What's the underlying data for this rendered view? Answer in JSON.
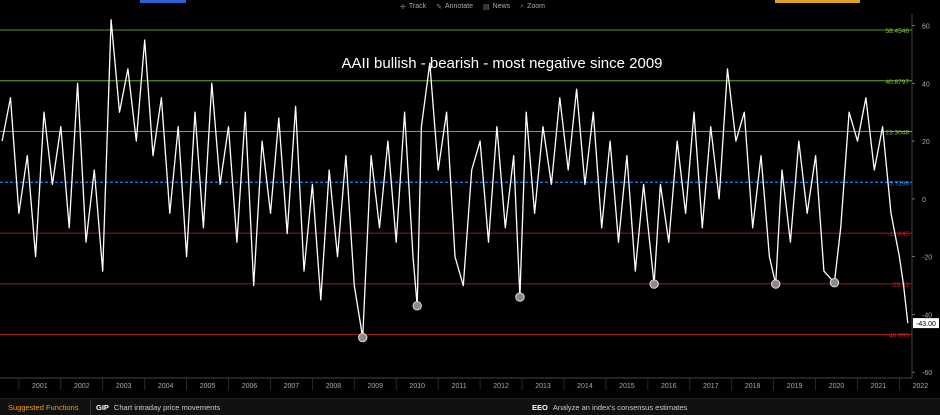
{
  "toolbar": {
    "items": [
      {
        "label": "Track",
        "icon": "crosshair-icon"
      },
      {
        "label": "Annotate",
        "icon": "pencil-icon"
      },
      {
        "label": "News",
        "icon": "news-icon"
      },
      {
        "label": "Zoom",
        "icon": "zoom-icon"
      }
    ]
  },
  "bottom_bar": {
    "label": "Suggested Functions",
    "functions": [
      {
        "code": "GIP",
        "description": "Chart intraday price movements"
      },
      {
        "code": "EEO",
        "description": "Analyze an index's consensus estimates"
      }
    ]
  },
  "colors": {
    "background": "#000000",
    "series": "#ffffff",
    "mean_line": "#1e90ff",
    "upper_bands": "#7cc242",
    "lower_bands": "#cc2222",
    "last_value_box": "#ffffff"
  },
  "chart_data": {
    "type": "line",
    "title": "AAII bullish - bearish - most negative since 2009",
    "x_tick_labels": [
      "2001",
      "2002",
      "2003",
      "2004",
      "2005",
      "2006",
      "2007",
      "2008",
      "2009",
      "2010",
      "2011",
      "2012",
      "2013",
      "2014",
      "2015",
      "2016",
      "2017",
      "2018",
      "2019",
      "2020",
      "2021",
      "2022"
    ],
    "xlim": [
      2000.55,
      2022.3
    ],
    "ylim": [
      -62,
      64
    ],
    "y_ticks": [
      -60,
      -40,
      -20,
      0,
      20,
      40,
      60
    ],
    "y_tick_labels": [
      "-60",
      "-40",
      "-20",
      "0",
      "20",
      "40",
      "60"
    ],
    "reference_lines": [
      {
        "value": 58.4546,
        "label": "58.4546",
        "color": "#7cc242"
      },
      {
        "value": 40.8797,
        "label": "40.8797",
        "color": "#7cc242"
      },
      {
        "value": 23.3048,
        "label": "23.3048",
        "color": "#7cc242"
      },
      {
        "value": 5.7299,
        "label": "5.7299",
        "color": "#1e90ff",
        "style": "dashed"
      },
      {
        "value": -11.845,
        "label": "-11.845",
        "color": "#cc2222"
      },
      {
        "value": -29.42,
        "label": "-29.42",
        "color": "#cc2222"
      },
      {
        "value": -46.995,
        "label": "-46.995",
        "color": "#cc2222"
      }
    ],
    "last_value": {
      "value": -43.0,
      "label": "-43.00"
    },
    "highlighted_lows": [
      {
        "x": 2009.2,
        "y": -48
      },
      {
        "x": 2010.5,
        "y": -37
      },
      {
        "x": 2012.95,
        "y": -34
      },
      {
        "x": 2016.15,
        "y": -29.5
      },
      {
        "x": 2019.05,
        "y": -29.5
      },
      {
        "x": 2020.45,
        "y": -29
      }
    ],
    "series": [
      {
        "values": [
          [
            2000.6,
            20
          ],
          [
            2000.8,
            35
          ],
          [
            2001.0,
            -5
          ],
          [
            2001.2,
            15
          ],
          [
            2001.4,
            -20
          ],
          [
            2001.6,
            30
          ],
          [
            2001.8,
            5
          ],
          [
            2002.0,
            25
          ],
          [
            2002.2,
            -10
          ],
          [
            2002.4,
            40
          ],
          [
            2002.6,
            -15
          ],
          [
            2002.8,
            10
          ],
          [
            2003.0,
            -25
          ],
          [
            2003.2,
            62
          ],
          [
            2003.4,
            30
          ],
          [
            2003.6,
            45
          ],
          [
            2003.8,
            20
          ],
          [
            2004.0,
            55
          ],
          [
            2004.2,
            15
          ],
          [
            2004.4,
            35
          ],
          [
            2004.6,
            -5
          ],
          [
            2004.8,
            25
          ],
          [
            2005.0,
            -20
          ],
          [
            2005.2,
            30
          ],
          [
            2005.4,
            -10
          ],
          [
            2005.6,
            40
          ],
          [
            2005.8,
            5
          ],
          [
            2006.0,
            25
          ],
          [
            2006.2,
            -15
          ],
          [
            2006.4,
            30
          ],
          [
            2006.6,
            -30
          ],
          [
            2006.8,
            20
          ],
          [
            2007.0,
            -5
          ],
          [
            2007.2,
            28
          ],
          [
            2007.4,
            -12
          ],
          [
            2007.6,
            32
          ],
          [
            2007.8,
            -25
          ],
          [
            2008.0,
            5
          ],
          [
            2008.2,
            -35
          ],
          [
            2008.4,
            10
          ],
          [
            2008.6,
            -20
          ],
          [
            2008.8,
            15
          ],
          [
            2009.0,
            -30
          ],
          [
            2009.2,
            -48
          ],
          [
            2009.4,
            15
          ],
          [
            2009.6,
            -10
          ],
          [
            2009.8,
            20
          ],
          [
            2010.0,
            -15
          ],
          [
            2010.2,
            30
          ],
          [
            2010.4,
            -20
          ],
          [
            2010.5,
            -37
          ],
          [
            2010.6,
            25
          ],
          [
            2010.8,
            47
          ],
          [
            2011.0,
            10
          ],
          [
            2011.2,
            30
          ],
          [
            2011.4,
            -20
          ],
          [
            2011.6,
            -30
          ],
          [
            2011.8,
            10
          ],
          [
            2012.0,
            20
          ],
          [
            2012.2,
            -15
          ],
          [
            2012.4,
            25
          ],
          [
            2012.6,
            -10
          ],
          [
            2012.8,
            15
          ],
          [
            2012.95,
            -34
          ],
          [
            2013.1,
            30
          ],
          [
            2013.3,
            -5
          ],
          [
            2013.5,
            25
          ],
          [
            2013.7,
            5
          ],
          [
            2013.9,
            35
          ],
          [
            2014.1,
            10
          ],
          [
            2014.3,
            38
          ],
          [
            2014.5,
            5
          ],
          [
            2014.7,
            30
          ],
          [
            2014.9,
            -10
          ],
          [
            2015.1,
            20
          ],
          [
            2015.3,
            -15
          ],
          [
            2015.5,
            15
          ],
          [
            2015.7,
            -25
          ],
          [
            2015.9,
            5
          ],
          [
            2016.15,
            -29.5
          ],
          [
            2016.3,
            5
          ],
          [
            2016.5,
            -15
          ],
          [
            2016.7,
            20
          ],
          [
            2016.9,
            -5
          ],
          [
            2017.1,
            30
          ],
          [
            2017.3,
            -10
          ],
          [
            2017.5,
            25
          ],
          [
            2017.7,
            0
          ],
          [
            2017.9,
            45
          ],
          [
            2018.1,
            20
          ],
          [
            2018.3,
            30
          ],
          [
            2018.5,
            -10
          ],
          [
            2018.7,
            15
          ],
          [
            2018.9,
            -20
          ],
          [
            2019.05,
            -29.5
          ],
          [
            2019.2,
            10
          ],
          [
            2019.4,
            -15
          ],
          [
            2019.6,
            20
          ],
          [
            2019.8,
            -5
          ],
          [
            2020.0,
            15
          ],
          [
            2020.2,
            -25
          ],
          [
            2020.45,
            -29
          ],
          [
            2020.6,
            -10
          ],
          [
            2020.8,
            30
          ],
          [
            2021.0,
            20
          ],
          [
            2021.2,
            35
          ],
          [
            2021.4,
            10
          ],
          [
            2021.6,
            25
          ],
          [
            2021.8,
            -5
          ],
          [
            2022.0,
            -20
          ],
          [
            2022.1,
            -30
          ],
          [
            2022.2,
            -43
          ]
        ]
      }
    ]
  }
}
